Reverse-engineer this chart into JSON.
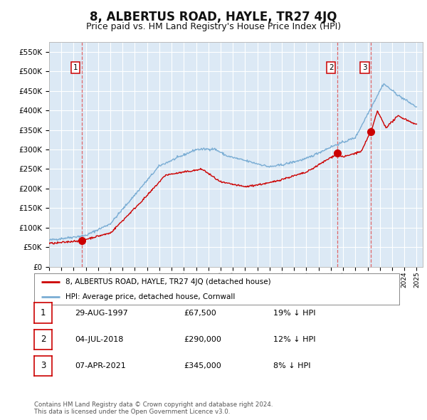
{
  "title": "8, ALBERTUS ROAD, HAYLE, TR27 4JQ",
  "subtitle": "Price paid vs. HM Land Registry's House Price Index (HPI)",
  "ylim": [
    0,
    575000
  ],
  "yticks": [
    0,
    50000,
    100000,
    150000,
    200000,
    250000,
    300000,
    350000,
    400000,
    450000,
    500000,
    550000
  ],
  "xlim_start": 1995.0,
  "xlim_end": 2025.5,
  "bg_color": "#dce9f5",
  "grid_color": "#ffffff",
  "transactions": [
    {
      "date_num": 1997.66,
      "price": 67500,
      "label": "1"
    },
    {
      "date_num": 2018.52,
      "price": 290000,
      "label": "2"
    },
    {
      "date_num": 2021.27,
      "price": 345000,
      "label": "3"
    }
  ],
  "vline_color": "#e05050",
  "sale_marker_color": "#cc0000",
  "sale_line_color": "#cc0000",
  "hpi_line_color": "#7aadd4",
  "legend_box_text_1": "8, ALBERTUS ROAD, HAYLE, TR27 4JQ (detached house)",
  "legend_box_text_2": "HPI: Average price, detached house, Cornwall",
  "table_rows": [
    {
      "num": "1",
      "date": "29-AUG-1997",
      "price": "£67,500",
      "hpi": "19% ↓ HPI"
    },
    {
      "num": "2",
      "date": "04-JUL-2018",
      "price": "£290,000",
      "hpi": "12% ↓ HPI"
    },
    {
      "num": "3",
      "date": "07-APR-2021",
      "price": "£345,000",
      "hpi": "8% ↓ HPI"
    }
  ],
  "footer": "Contains HM Land Registry data © Crown copyright and database right 2024.\nThis data is licensed under the Open Government Licence v3.0.",
  "title_fontsize": 12,
  "subtitle_fontsize": 9
}
